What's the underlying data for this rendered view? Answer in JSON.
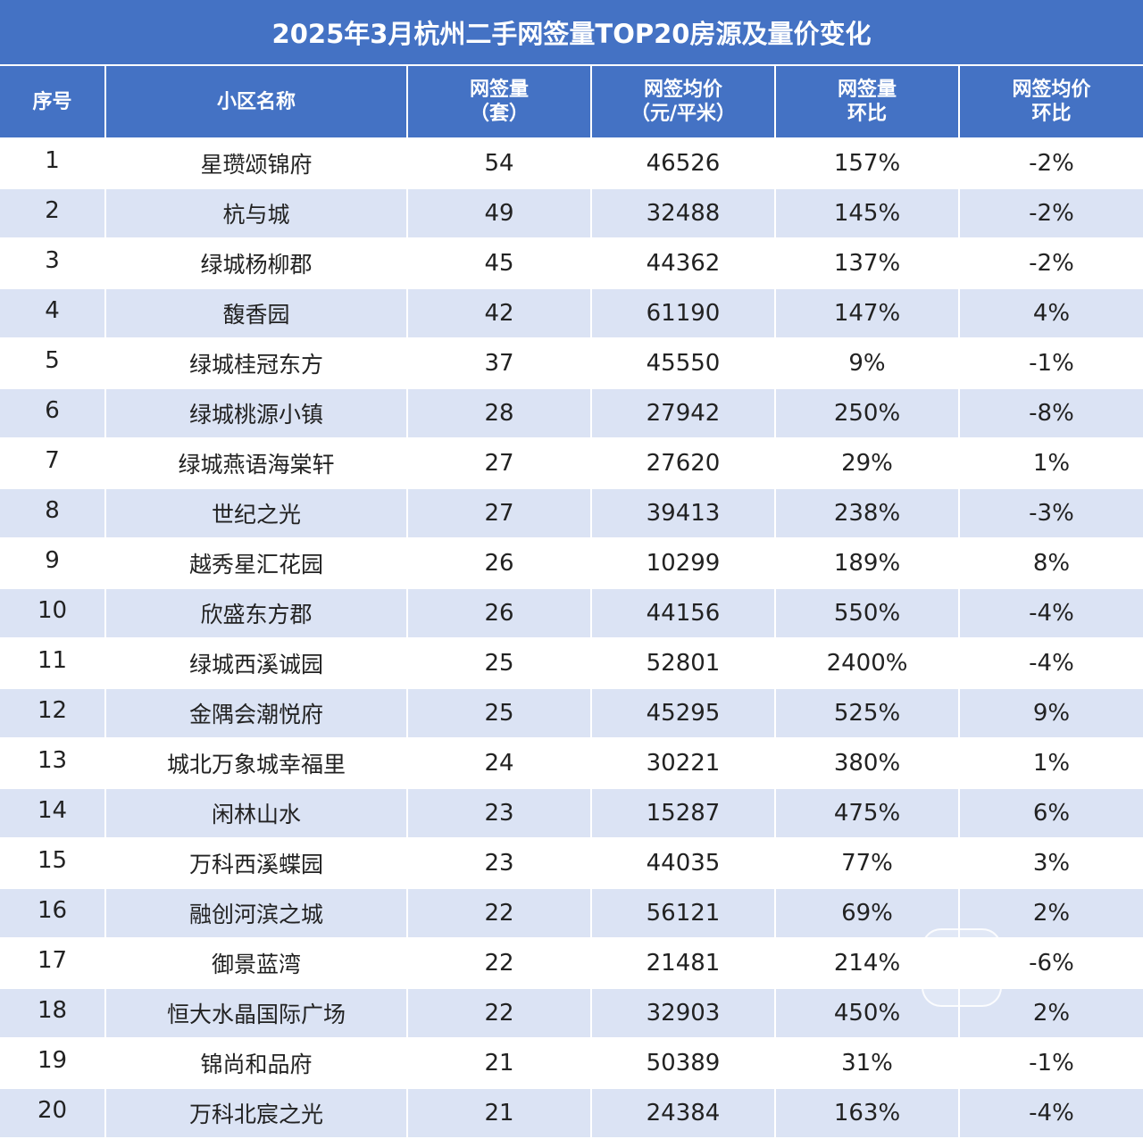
{
  "title": "2025年3月杭州二手网签量TOP20房源及量价变化",
  "headers": {
    "rank": [
      "序号"
    ],
    "name": [
      "小区名称"
    ],
    "volume": [
      "网签量",
      "（套）"
    ],
    "price": [
      "网签均价",
      "（元/平米）"
    ],
    "volume_mom": [
      "网签量",
      "环比"
    ],
    "price_mom": [
      "网签均价",
      "环比"
    ]
  },
  "rows": [
    {
      "rank": "1",
      "name": "星瓒颂锦府",
      "volume": "54",
      "price": "46526",
      "volume_mom": "157%",
      "price_mom": "-2%"
    },
    {
      "rank": "2",
      "name": "杭与城",
      "volume": "49",
      "price": "32488",
      "volume_mom": "145%",
      "price_mom": "-2%"
    },
    {
      "rank": "3",
      "name": "绿城杨柳郡",
      "volume": "45",
      "price": "44362",
      "volume_mom": "137%",
      "price_mom": "-2%"
    },
    {
      "rank": "4",
      "name": "馥香园",
      "volume": "42",
      "price": "61190",
      "volume_mom": "147%",
      "price_mom": "4%"
    },
    {
      "rank": "5",
      "name": "绿城桂冠东方",
      "volume": "37",
      "price": "45550",
      "volume_mom": "9%",
      "price_mom": "-1%"
    },
    {
      "rank": "6",
      "name": "绿城桃源小镇",
      "volume": "28",
      "price": "27942",
      "volume_mom": "250%",
      "price_mom": "-8%"
    },
    {
      "rank": "7",
      "name": "绿城燕语海棠轩",
      "volume": "27",
      "price": "27620",
      "volume_mom": "29%",
      "price_mom": "1%"
    },
    {
      "rank": "8",
      "name": "世纪之光",
      "volume": "27",
      "price": "39413",
      "volume_mom": "238%",
      "price_mom": "-3%"
    },
    {
      "rank": "9",
      "name": "越秀星汇花园",
      "volume": "26",
      "price": "10299",
      "volume_mom": "189%",
      "price_mom": "8%"
    },
    {
      "rank": "10",
      "name": "欣盛东方郡",
      "volume": "26",
      "price": "44156",
      "volume_mom": "550%",
      "price_mom": "-4%"
    },
    {
      "rank": "11",
      "name": "绿城西溪诚园",
      "volume": "25",
      "price": "52801",
      "volume_mom": "2400%",
      "price_mom": "-4%"
    },
    {
      "rank": "12",
      "name": "金隅会潮悦府",
      "volume": "25",
      "price": "45295",
      "volume_mom": "525%",
      "price_mom": "9%"
    },
    {
      "rank": "13",
      "name": "城北万象城幸福里",
      "volume": "24",
      "price": "30221",
      "volume_mom": "380%",
      "price_mom": "1%"
    },
    {
      "rank": "14",
      "name": "闲林山水",
      "volume": "23",
      "price": "15287",
      "volume_mom": "475%",
      "price_mom": "6%"
    },
    {
      "rank": "15",
      "name": "万科西溪蝶园",
      "volume": "23",
      "price": "44035",
      "volume_mom": "77%",
      "price_mom": "3%"
    },
    {
      "rank": "16",
      "name": "融创河滨之城",
      "volume": "22",
      "price": "56121",
      "volume_mom": "69%",
      "price_mom": "2%"
    },
    {
      "rank": "17",
      "name": "御景蓝湾",
      "volume": "22",
      "price": "21481",
      "volume_mom": "214%",
      "price_mom": "-6%"
    },
    {
      "rank": "18",
      "name": "恒大水晶国际广场",
      "volume": "22",
      "price": "32903",
      "volume_mom": "450%",
      "price_mom": "2%"
    },
    {
      "rank": "19",
      "name": "锦尚和品府",
      "volume": "21",
      "price": "50389",
      "volume_mom": "31%",
      "price_mom": "-1%"
    },
    {
      "rank": "20",
      "name": "万科北宸之光",
      "volume": "21",
      "price": "24384",
      "volume_mom": "163%",
      "price_mom": "-4%"
    }
  ],
  "colors": {
    "header_bg": "#4472c4",
    "stripe_bg": "#dbe3f4",
    "text": "#222222"
  }
}
